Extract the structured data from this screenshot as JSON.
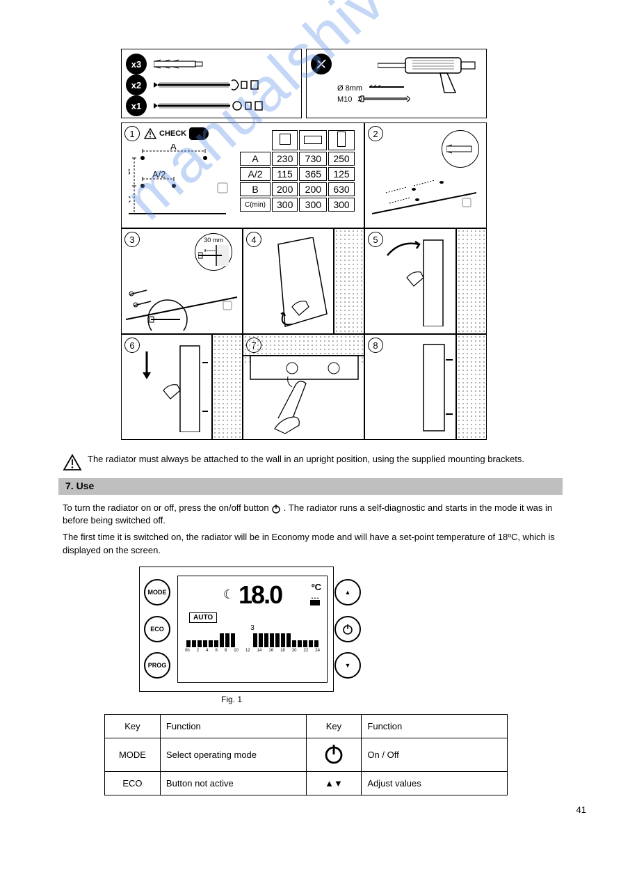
{
  "parts": {
    "qty_anchor": "x3",
    "qty_bolt_wing": "x2",
    "qty_bolt_hex": "x1",
    "drill_size": "Ø 8mm",
    "wrench_size": "M10"
  },
  "step_labels": {
    "check": "CHECK",
    "screw_depth": "30 mm"
  },
  "dim_table": {
    "row_labels": [
      "A",
      "A/2",
      "B",
      "C(min)"
    ],
    "cols": [
      {
        "icon": "square",
        "values": [
          "230",
          "115",
          "200",
          "300"
        ]
      },
      {
        "icon": "rect",
        "values": [
          "730",
          "365",
          "200",
          "300"
        ]
      },
      {
        "icon": "tall",
        "values": [
          "250",
          "125",
          "630",
          "300"
        ]
      }
    ]
  },
  "dim_letters": {
    "A": "A",
    "A2": "A/2",
    "B": "B",
    "C": "C"
  },
  "caution_text": "The radiator must always be attached to the wall in an upright position, using the supplied mounting brackets.",
  "section_title": "7.  Use",
  "use_p1_a": "To turn the radiator on or off, press the on/off button ",
  "use_p1_b": " . The radiator runs a self-diagnostic and starts in the mode it was in before being switched off.",
  "use_p2": "The first time it is switched on, the radiator will be in Economy mode and will have a set-point temperature of 18ºC, which is displayed on the screen.",
  "fig_label": "Fig. 1",
  "control": {
    "mode": "MODE",
    "eco": "ECO",
    "prog": "PROG",
    "moon": "☾",
    "temp": "18.0",
    "unit": "ºC",
    "auto": "AUTO",
    "day": "3",
    "hours": [
      "0h",
      "2",
      "4",
      "6",
      "8",
      "10",
      "12",
      "14",
      "16",
      "18",
      "20",
      "22",
      "24"
    ],
    "bars": [
      "s",
      "s",
      "s",
      "s",
      "s",
      "s",
      "t",
      "t",
      "t",
      "",
      "",
      "",
      "t",
      "t",
      "t",
      "t",
      "t",
      "t",
      "t",
      "s",
      "s",
      "s",
      "s",
      "s"
    ]
  },
  "key_table": {
    "r1c1": "Key",
    "r1c2": "Function",
    "r1c3": "Key",
    "r1c4": "Function",
    "r2c1": "MODE",
    "r2c2": "Select operating mode",
    "r2c4": "On / Off",
    "r3c1": "ECO",
    "r3c2": "Button not active",
    "r3c3": "▲▼",
    "r3c4": "Adjust values"
  },
  "page_number": "41",
  "colors": {
    "black": "#000000",
    "gray_bar": "#bfbfbf",
    "watermark": "rgba(90,140,230,0.35)"
  }
}
